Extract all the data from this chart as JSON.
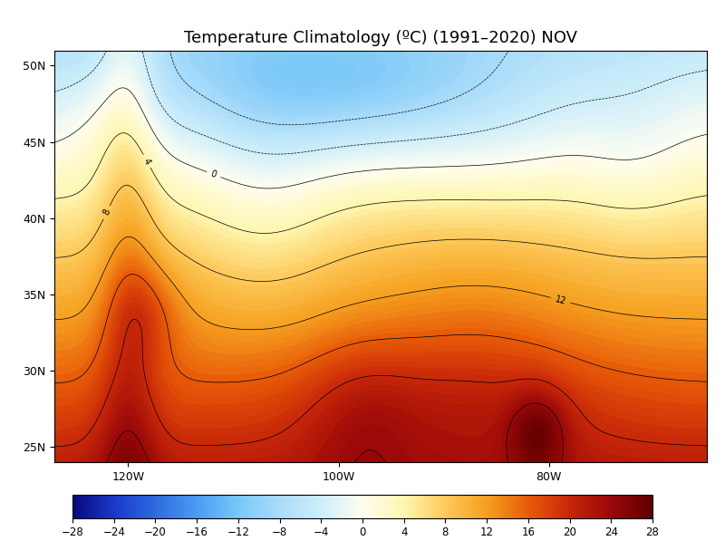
{
  "title": "Temperature Climatology (ºC) (1991–2020) NOV",
  "colorbar_ticks": [
    -28,
    -24,
    -20,
    -16,
    -12,
    -8,
    -4,
    0,
    4,
    8,
    12,
    16,
    20,
    24,
    28
  ],
  "colorbar_colors": [
    "#08087a",
    "#1a3acc",
    "#2e6bde",
    "#4b9cf5",
    "#7ac8f8",
    "#aadcfa",
    "#ceeefa",
    "#fefef0",
    "#fef6b0",
    "#fdc95a",
    "#f5a020",
    "#e85c08",
    "#c82808",
    "#9a0808",
    "#600000"
  ],
  "clim": [
    -28,
    28
  ],
  "lon_ticks": [
    -120,
    -100,
    -80
  ],
  "lon_labels": [
    "120W",
    "100W",
    "80W"
  ],
  "lat_ticks": [
    25,
    30,
    35,
    40,
    45,
    50
  ],
  "lat_labels": [
    "25N",
    "30N",
    "35N",
    "40N",
    "45N",
    "50N"
  ],
  "xlim": [
    -127,
    -65
  ],
  "ylim": [
    24,
    51
  ],
  "contour_levels": [
    -28,
    -24,
    -20,
    -16,
    -12,
    -8,
    -4,
    0,
    4,
    8,
    12,
    16,
    20,
    24,
    28
  ],
  "label_levels": [
    0,
    4,
    8,
    12
  ],
  "background_color": "#ffffff"
}
